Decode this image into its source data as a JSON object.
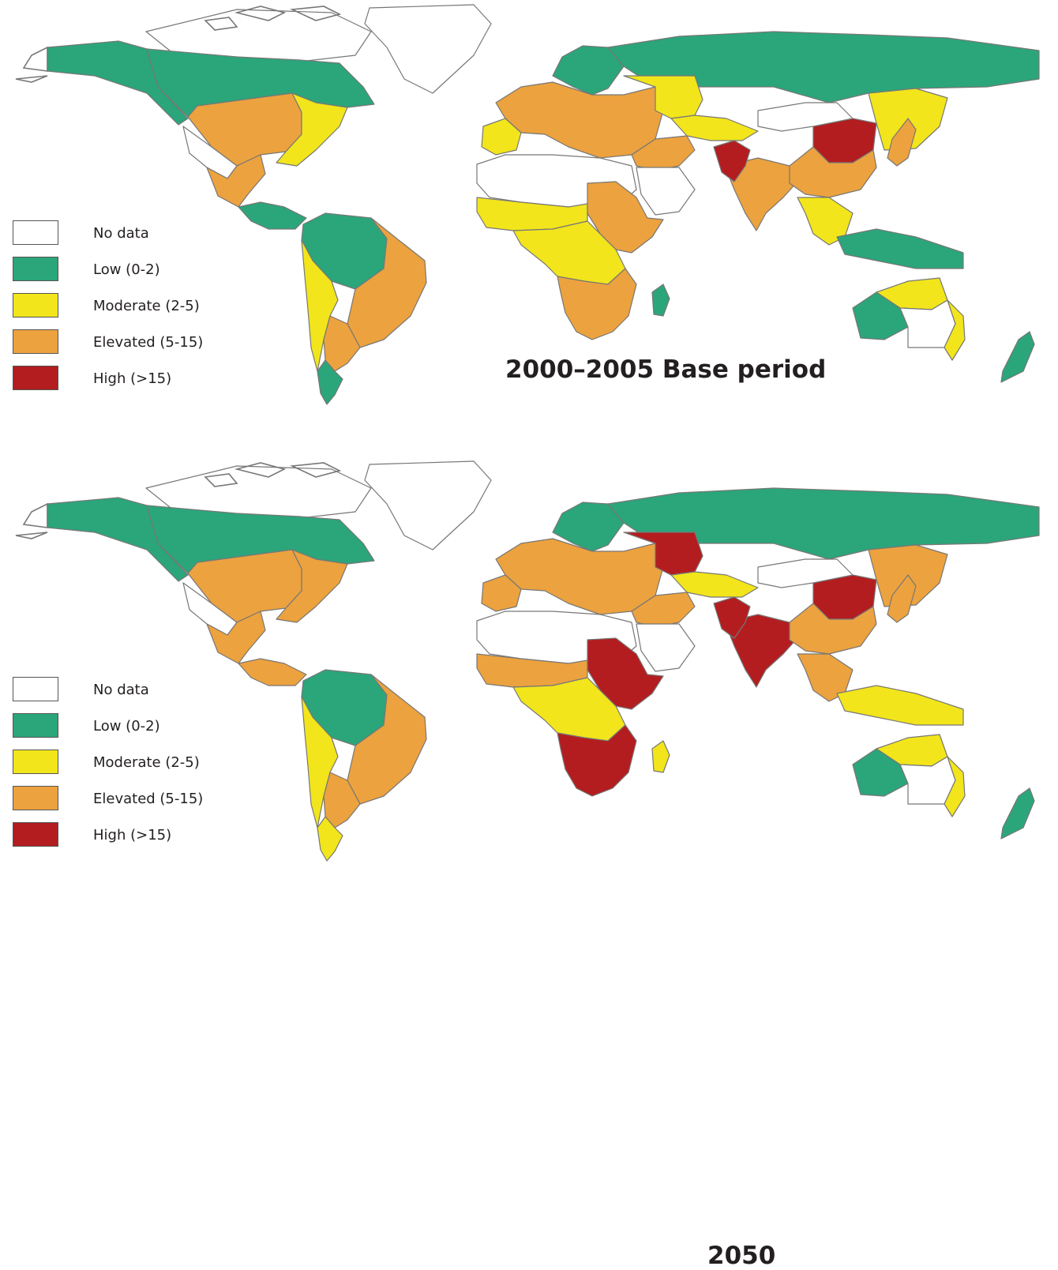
{
  "colors": {
    "no_data": "#ffffff",
    "low": "#2ba57a",
    "moderate": "#f2e51b",
    "elevated": "#eca23e",
    "high": "#b31d1f",
    "border": "#777777"
  },
  "legend": [
    {
      "label": "No data",
      "class": "no_data"
    },
    {
      "label": "Low (0-2)",
      "class": "low"
    },
    {
      "label": "Moderate (2-5)",
      "class": "moderate"
    },
    {
      "label": "Elevated (5-15)",
      "class": "elevated"
    },
    {
      "label": "High (>15)",
      "class": "high"
    }
  ],
  "panels": [
    {
      "title": "2000–2005 Base period",
      "regions": {
        "greenland": "no_data",
        "canada_arctic": "no_data",
        "alaska": "low",
        "canada": "low",
        "us_west": "elevated",
        "us_east": "moderate",
        "us_southwest": "no_data",
        "mexico": "elevated",
        "central_america": "low",
        "amazon": "low",
        "brazil_east": "elevated",
        "andes": "moderate",
        "argentina": "elevated",
        "patagonia": "low",
        "scandinavia": "low",
        "europe": "elevated",
        "iberia": "moderate",
        "russia": "low",
        "kazakhstan": "moderate",
        "central_asia": "moderate",
        "middle_east": "elevated",
        "arabia": "no_data",
        "north_africa": "no_data",
        "sahel": "moderate",
        "horn_africa": "elevated",
        "central_africa": "moderate",
        "southern_africa": "elevated",
        "madagascar": "low",
        "india": "elevated",
        "indus": "high",
        "north_china": "high",
        "south_china": "elevated",
        "mongolia": "no_data",
        "siberia_east": "moderate",
        "southeast_asia": "moderate",
        "indonesia": "low",
        "australia_north": "moderate",
        "australia_west": "low",
        "australia_interior": "no_data",
        "australia_east": "moderate",
        "new_zealand": "low",
        "japan": "elevated"
      }
    },
    {
      "title": "2050",
      "regions": {
        "greenland": "no_data",
        "canada_arctic": "no_data",
        "alaska": "low",
        "canada": "low",
        "us_west": "elevated",
        "us_east": "elevated",
        "us_southwest": "no_data",
        "mexico": "elevated",
        "central_america": "elevated",
        "amazon": "low",
        "brazil_east": "elevated",
        "andes": "moderate",
        "argentina": "elevated",
        "patagonia": "moderate",
        "scandinavia": "low",
        "europe": "elevated",
        "iberia": "elevated",
        "russia": "low",
        "kazakhstan": "high",
        "central_asia": "moderate",
        "middle_east": "elevated",
        "arabia": "no_data",
        "north_africa": "no_data",
        "sahel": "elevated",
        "horn_africa": "high",
        "central_africa": "moderate",
        "southern_africa": "high",
        "madagascar": "moderate",
        "india": "high",
        "indus": "high",
        "north_china": "high",
        "south_china": "elevated",
        "mongolia": "no_data",
        "siberia_east": "elevated",
        "southeast_asia": "elevated",
        "indonesia": "moderate",
        "australia_north": "moderate",
        "australia_west": "low",
        "australia_interior": "no_data",
        "australia_east": "moderate",
        "new_zealand": "low",
        "japan": "elevated"
      }
    }
  ]
}
